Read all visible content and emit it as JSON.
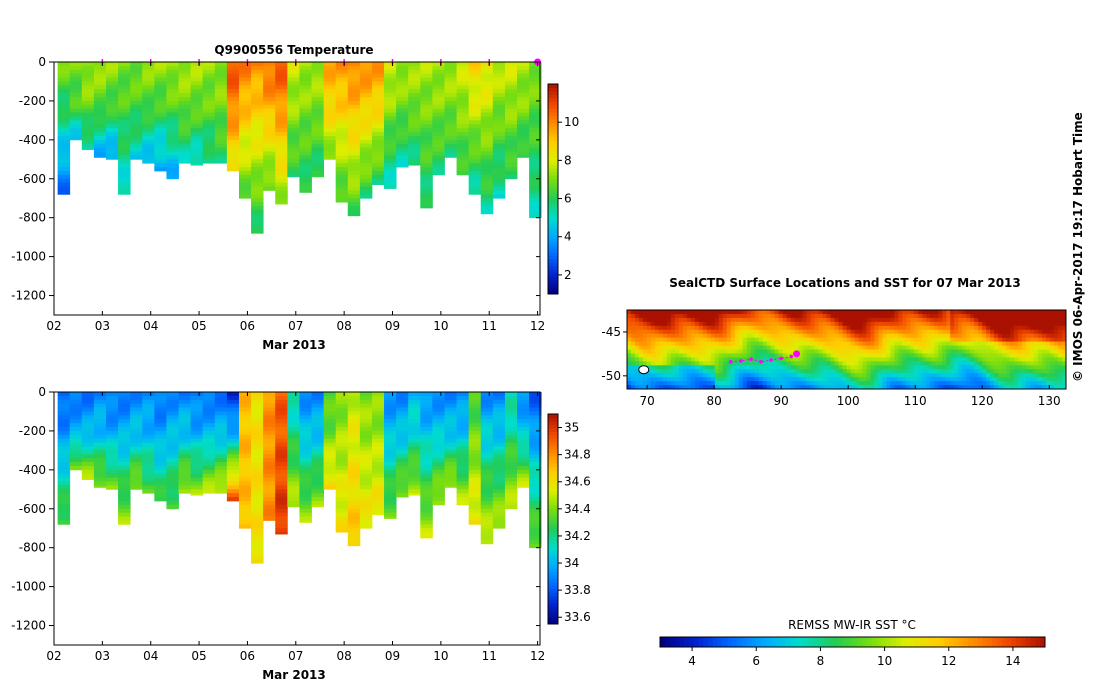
{
  "colors": {
    "cmap": [
      "#00007f",
      "#0022cc",
      "#0066ff",
      "#00aaff",
      "#00ddcc",
      "#22cc55",
      "#77dd11",
      "#ddee00",
      "#ffcc00",
      "#ff8800",
      "#ee4400",
      "#aa1100"
    ],
    "marker": "#ff00ff"
  },
  "chart_data": [
    {
      "type": "heatmap",
      "title": "Q9900556  Temperature",
      "xlabel": "Mar 2013",
      "ylabel": "",
      "xticks": [
        "02",
        "03",
        "04",
        "05",
        "06",
        "07",
        "08",
        "09",
        "10",
        "11",
        "12"
      ],
      "yticks": [
        "0",
        "-200",
        "-400",
        "-600",
        "-800",
        "-1000",
        "-1200"
      ],
      "xlim": [
        2,
        12.05
      ],
      "ylim": [
        -1300,
        0
      ],
      "colorbar": {
        "range": [
          1,
          12
        ],
        "ticks": [
          "2",
          "4",
          "6",
          "8",
          "10"
        ]
      },
      "profile_days": [
        2.2,
        2.45,
        2.7,
        2.95,
        3.2,
        3.45,
        3.7,
        3.95,
        4.2,
        4.45,
        4.7,
        4.95,
        5.2,
        5.45,
        5.7,
        5.95,
        6.2,
        6.45,
        6.7,
        6.95,
        7.2,
        7.45,
        7.7,
        7.95,
        8.2,
        8.45,
        8.7,
        8.95,
        9.2,
        9.45,
        9.7,
        9.95,
        10.2,
        10.45,
        10.7,
        10.95,
        11.2,
        11.45,
        11.7,
        11.95
      ],
      "profile_max_depth": [
        680,
        400,
        450,
        490,
        500,
        680,
        500,
        520,
        560,
        600,
        520,
        530,
        520,
        520,
        560,
        700,
        880,
        660,
        730,
        590,
        670,
        590,
        500,
        720,
        790,
        700,
        630,
        650,
        540,
        530,
        750,
        580,
        490,
        580,
        680,
        780,
        700,
        600,
        490,
        800
      ],
      "profile_surface_temp": [
        7,
        7,
        7.5,
        7.5,
        7.3,
        7,
        7,
        7.3,
        7.3,
        7.5,
        7.5,
        7.5,
        7.3,
        7.3,
        10.8,
        10.2,
        10,
        10.5,
        10.8,
        7.8,
        7.5,
        7.5,
        9.5,
        9.8,
        10.2,
        10,
        9.8,
        8,
        7.5,
        7.5,
        7.5,
        7.5,
        7.5,
        7.8,
        8.8,
        8.5,
        7.8,
        7.8,
        7.5,
        7.2
      ],
      "profile_deep_temp": [
        3,
        4.5,
        5,
        4,
        3.8,
        4.8,
        4.8,
        4.2,
        3.8,
        4,
        5.2,
        4.8,
        5.3,
        5.8,
        8.2,
        6.5,
        5.8,
        6.5,
        7.2,
        6,
        5.8,
        5.8,
        7,
        6.2,
        6.3,
        5.9,
        5.8,
        5,
        5.2,
        5.5,
        5.6,
        5.8,
        5.8,
        6,
        5.2,
        5.4,
        5.2,
        5.8,
        5.8,
        5.2
      ]
    },
    {
      "type": "heatmap",
      "title": "",
      "xlabel": "Mar 2013",
      "ylabel": "",
      "xticks": [
        "02",
        "03",
        "04",
        "05",
        "06",
        "07",
        "08",
        "09",
        "10",
        "11",
        "12"
      ],
      "yticks": [
        "0",
        "-200",
        "-400",
        "-600",
        "-800",
        "-1000",
        "-1200"
      ],
      "xlim": [
        2,
        12.05
      ],
      "ylim": [
        -1300,
        0
      ],
      "colorbar": {
        "range": [
          33.55,
          35.1
        ],
        "ticks": [
          "33.6",
          "33.8",
          "34",
          "34.2",
          "34.4",
          "34.6",
          "34.8",
          "35"
        ]
      },
      "profile_days": [
        2.2,
        2.45,
        2.7,
        2.95,
        3.2,
        3.45,
        3.7,
        3.95,
        4.2,
        4.45,
        4.7,
        4.95,
        5.2,
        5.45,
        5.7,
        5.95,
        6.2,
        6.45,
        6.7,
        6.95,
        7.2,
        7.45,
        7.7,
        7.95,
        8.2,
        8.45,
        8.7,
        8.95,
        9.2,
        9.45,
        9.7,
        9.95,
        10.2,
        10.45,
        10.7,
        10.95,
        11.2,
        11.45,
        11.7,
        11.95
      ],
      "profile_max_depth": [
        680,
        400,
        450,
        490,
        500,
        680,
        500,
        520,
        560,
        600,
        520,
        530,
        520,
        520,
        560,
        700,
        880,
        660,
        730,
        590,
        670,
        590,
        500,
        720,
        790,
        700,
        630,
        650,
        540,
        530,
        750,
        580,
        490,
        580,
        680,
        780,
        700,
        600,
        490,
        800
      ],
      "profile_surface_sal": [
        33.8,
        33.85,
        33.85,
        33.9,
        33.85,
        33.85,
        33.9,
        33.9,
        33.85,
        33.9,
        33.9,
        33.85,
        33.85,
        33.85,
        33.7,
        34.7,
        34.6,
        34.8,
        34.9,
        34.1,
        33.9,
        33.9,
        34.3,
        34.4,
        34.5,
        34.4,
        34.4,
        33.9,
        33.9,
        34,
        33.9,
        33.9,
        33.9,
        33.9,
        34.3,
        33.9,
        33.9,
        34.1,
        33.9,
        33.8
      ],
      "profile_deep_sal": [
        34.35,
        34.45,
        34.5,
        34.45,
        34.4,
        34.45,
        34.45,
        34.35,
        34.3,
        34.35,
        34.5,
        34.45,
        34.5,
        34.55,
        34.95,
        34.7,
        34.6,
        34.8,
        35,
        34.5,
        34.45,
        34.45,
        34.65,
        34.6,
        34.7,
        34.6,
        34.6,
        34.4,
        34.45,
        34.5,
        34.5,
        34.5,
        34.5,
        34.5,
        34.6,
        34.55,
        34.5,
        34.5,
        34.5,
        34.4
      ]
    },
    {
      "type": "heatmap",
      "title": "SealCTD Surface Locations and SST for 07 Mar 2013",
      "xlabel": "",
      "ylabel": "",
      "xticks": [
        "70",
        "80",
        "90",
        "100",
        "110",
        "120",
        "130"
      ],
      "yticks": [
        "-45",
        "-50"
      ],
      "xlim": [
        67,
        132.5
      ],
      "ylim": [
        -51.5,
        -42.5
      ],
      "colorbar": {
        "label": "REMSS MW-IR SST °C",
        "range": [
          3,
          15
        ],
        "ticks": [
          "4",
          "6",
          "8",
          "10",
          "12",
          "14"
        ]
      },
      "track_lon": [
        82.5,
        84,
        85.5,
        87,
        88.5,
        90,
        91.5,
        92.3
      ],
      "track_lat": [
        -48.4,
        -48.3,
        -48.1,
        -48.4,
        -48.2,
        -48.0,
        -47.8,
        -47.5
      ]
    }
  ],
  "watermark": "© IMOS 06-Apr-2017 19:17 Hobart Time"
}
